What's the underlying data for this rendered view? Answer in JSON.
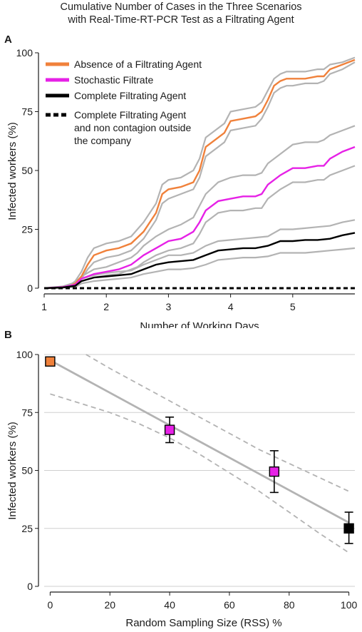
{
  "figure": {
    "title_line1": "Cumulative Number of Cases in the Three Scenarios",
    "title_line2": "with Real-Time-RT-PCR Test as a Filtrating Agent"
  },
  "chart_data": [
    {
      "panel": "A",
      "type": "line",
      "xlabel": "Number of Working Days",
      "ylabel": "Infected workers (%)",
      "xlim": [
        1,
        6
      ],
      "ylim": [
        0,
        100
      ],
      "xticks": [
        1,
        2,
        3,
        4,
        5
      ],
      "yticks": [
        0,
        25,
        50,
        75,
        100
      ],
      "grid": false,
      "legend_position": "top-left",
      "series": [
        {
          "name": "Absence of a Filtrating Agent",
          "color": "#F0813B",
          "style": "solid",
          "band": "gray",
          "x": [
            1,
            1.2,
            1.4,
            1.5,
            1.6,
            1.7,
            1.8,
            2,
            2.2,
            2.4,
            2.6,
            2.8,
            2.9,
            3,
            3.2,
            3.4,
            3.5,
            3.6,
            3.8,
            3.9,
            4,
            4.2,
            4.4,
            4.5,
            4.6,
            4.7,
            4.8,
            4.9,
            5,
            5.2,
            5.4,
            5.5,
            5.6,
            5.8,
            6
          ],
          "y": [
            0,
            0.2,
            0.8,
            2,
            5,
            10,
            14,
            16,
            17,
            19,
            24,
            32,
            40,
            42,
            43,
            45,
            50,
            60,
            64,
            66,
            71,
            72,
            73,
            75,
            80,
            86,
            88,
            89,
            89,
            89,
            90,
            90,
            93,
            95,
            97
          ],
          "lower": [
            0,
            0.1,
            0.5,
            1.5,
            4,
            8,
            11,
            13,
            14,
            16,
            21,
            29,
            36,
            38,
            40,
            42,
            47,
            56,
            60,
            62,
            67,
            68,
            69,
            72,
            77,
            83,
            85,
            86,
            86,
            87,
            87,
            88,
            91,
            93,
            96
          ],
          "upper": [
            0,
            0.3,
            1,
            3,
            7,
            13,
            17,
            19,
            20,
            22,
            28,
            36,
            44,
            46,
            47,
            50,
            55,
            64,
            68,
            70,
            75,
            76,
            77,
            79,
            84,
            89,
            91,
            92,
            92,
            92,
            93,
            93,
            95,
            96,
            98
          ]
        },
        {
          "name": "Stochastic Filtrate",
          "color": "#E621E6",
          "style": "solid",
          "band": "gray",
          "x": [
            1,
            1.3,
            1.5,
            1.6,
            1.8,
            2,
            2.2,
            2.4,
            2.5,
            2.6,
            2.8,
            3,
            3.2,
            3.4,
            3.5,
            3.6,
            3.8,
            4,
            4.2,
            4.4,
            4.5,
            4.6,
            4.8,
            5,
            5.2,
            5.4,
            5.5,
            5.6,
            5.8,
            6
          ],
          "y": [
            0,
            0.5,
            1.5,
            4,
            6,
            7,
            8,
            10,
            12,
            14,
            17,
            20,
            21,
            24,
            28,
            33,
            37,
            38,
            39,
            39,
            40,
            44,
            48,
            51,
            51,
            52,
            52,
            55,
            58,
            60
          ],
          "lower": [
            0,
            0.3,
            1,
            3,
            4.5,
            5.5,
            6,
            8,
            9,
            11,
            14,
            16,
            17,
            19,
            23,
            28,
            32,
            33,
            33,
            34,
            34,
            38,
            42,
            45,
            45,
            46,
            46,
            48,
            50,
            52
          ],
          "upper": [
            0,
            0.8,
            2.5,
            5,
            8,
            9,
            11,
            13,
            15,
            18,
            22,
            25,
            27,
            30,
            35,
            40,
            45,
            47,
            48,
            48,
            49,
            53,
            57,
            61,
            62,
            62,
            63,
            65,
            67,
            69
          ]
        },
        {
          "name": "Complete Filtrating Agent",
          "color": "#000000",
          "style": "solid",
          "band": "gray",
          "x": [
            1,
            1.3,
            1.5,
            1.6,
            1.8,
            2,
            2.2,
            2.4,
            2.6,
            2.8,
            3,
            3.2,
            3.4,
            3.6,
            3.8,
            4,
            4.2,
            4.4,
            4.6,
            4.8,
            5,
            5.2,
            5.4,
            5.6,
            5.8,
            6
          ],
          "y": [
            0,
            0.3,
            1,
            3,
            4.5,
            5,
            5.5,
            6,
            8,
            10,
            11,
            11.5,
            12,
            14,
            16,
            16.5,
            17,
            17,
            18,
            20,
            20,
            20.5,
            20.5,
            21,
            22.5,
            23.5
          ],
          "lower": [
            0,
            0.2,
            0.5,
            2,
            3,
            3.5,
            4,
            4.5,
            6,
            7,
            8,
            8,
            8.5,
            10,
            12,
            12.5,
            13,
            13,
            13.5,
            15,
            15,
            15,
            15.5,
            16,
            16.5,
            17
          ],
          "upper": [
            0,
            0.5,
            1.5,
            4,
            5.5,
            6.5,
            7,
            7.5,
            10,
            12,
            14,
            14,
            15,
            18,
            20,
            20.5,
            21,
            21.5,
            22,
            25,
            25,
            25.5,
            26,
            26.5,
            28,
            29
          ]
        },
        {
          "name": "Complete Filtrating Agent and non contagion outside the company",
          "legend_lines": [
            "Complete Filtrating Agent",
            "and non contagion outside",
            "the company"
          ],
          "color": "#000000",
          "style": "dashed",
          "x": [
            1,
            6
          ],
          "y": [
            0,
            0
          ]
        }
      ]
    },
    {
      "panel": "B",
      "type": "scatter",
      "xlabel": "Random Sampling Size (RSS) %",
      "ylabel": "Infected workers (%)",
      "xlim": [
        -2,
        102
      ],
      "ylim": [
        0,
        100
      ],
      "xticks": [
        0,
        20,
        40,
        60,
        80,
        100
      ],
      "yticks": [
        0,
        25,
        50,
        75,
        100
      ],
      "grid": true,
      "points": [
        {
          "x": 0,
          "y": 97,
          "color": "#F0813B"
        },
        {
          "x": 40,
          "y": 67.5,
          "err": [
            62,
            73
          ],
          "color": "#E621E6"
        },
        {
          "x": 75,
          "y": 49.5,
          "err": [
            40.5,
            58.5
          ],
          "color": "#E621E6"
        },
        {
          "x": 100,
          "y": 25,
          "err": [
            18.5,
            32
          ],
          "color": "#000000"
        }
      ],
      "fit": {
        "x": [
          0,
          100
        ],
        "y": [
          97.5,
          27.5
        ],
        "color": "#B3B3B3"
      },
      "ci": {
        "upper": {
          "x": [
            12,
            20,
            30,
            40,
            50,
            60,
            70,
            80,
            90,
            100
          ],
          "y": [
            100,
            94,
            87,
            80,
            73,
            66,
            59,
            53,
            47,
            41
          ]
        },
        "lower": {
          "x": [
            0,
            10,
            20,
            30,
            40,
            50,
            60,
            70,
            80,
            90,
            100
          ],
          "y": [
            83,
            79,
            75,
            70,
            64,
            57,
            49,
            41,
            32,
            23,
            14.5
          ]
        }
      }
    }
  ]
}
